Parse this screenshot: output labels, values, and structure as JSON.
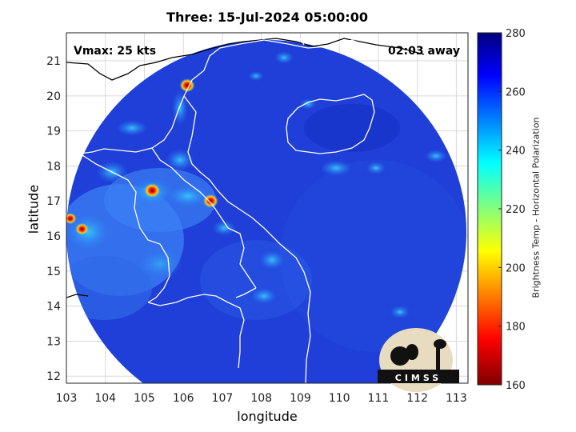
{
  "title": "Three: 15-Jul-2024 05:00:00",
  "xlabel": "longitude",
  "ylabel": "latitude",
  "vmax_text": "Vmax: 25 kts",
  "away_text": "02:03 away",
  "colorbar": {
    "label": "Brightness Temp - Horizontal Polarization",
    "ticks": [
      "280",
      "260",
      "240",
      "220",
      "200",
      "180",
      "160"
    ],
    "range": [
      160,
      280
    ],
    "colormap": "jet-reversed"
  },
  "map": {
    "lon_range": [
      103,
      113.3
    ],
    "lat_range": [
      11.8,
      21.8
    ],
    "x_ticks": [
      "103",
      "104",
      "105",
      "106",
      "107",
      "108",
      "109",
      "110",
      "111",
      "112",
      "113"
    ],
    "y_ticks": [
      "21",
      "20",
      "19",
      "18",
      "17",
      "16",
      "15",
      "14",
      "13",
      "12"
    ],
    "grid": true,
    "background_color": "#1c3fd6",
    "hot_spots": [
      {
        "lon": 105.2,
        "lat": 17.3,
        "bt": 165
      },
      {
        "lon": 106.1,
        "lat": 20.3,
        "bt": 170
      },
      {
        "lon": 106.7,
        "lat": 17.0,
        "bt": 170
      },
      {
        "lon": 103.4,
        "lat": 16.2,
        "bt": 180
      },
      {
        "lon": 103.1,
        "lat": 16.5,
        "bt": 185
      }
    ]
  },
  "logo": {
    "text": "CIMSS"
  }
}
